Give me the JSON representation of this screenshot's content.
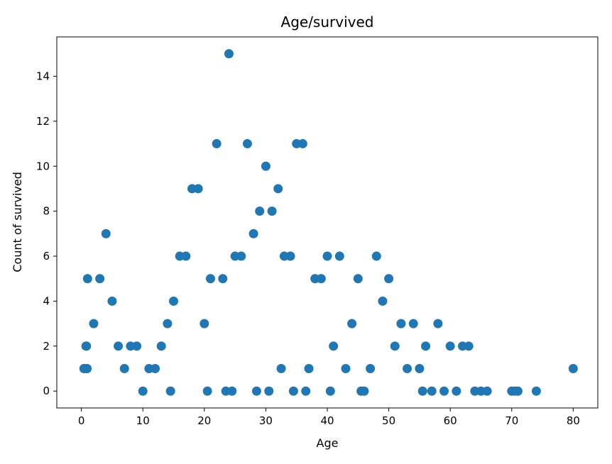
{
  "chart_data": {
    "type": "scatter",
    "title": "Age/survived",
    "xlabel": "Age",
    "ylabel": "Count of survived",
    "xlim": [
      -4.0,
      84.0
    ],
    "ylim": [
      -0.75,
      15.75
    ],
    "xticks": [
      0,
      10,
      20,
      30,
      40,
      50,
      60,
      70,
      80
    ],
    "yticks": [
      0,
      2,
      4,
      6,
      8,
      10,
      12,
      14
    ],
    "grid": false,
    "marker_color": "#1f77b4",
    "points": [
      {
        "x": 0.42,
        "y": 1
      },
      {
        "x": 0.67,
        "y": 1
      },
      {
        "x": 0.75,
        "y": 2
      },
      {
        "x": 0.83,
        "y": 2
      },
      {
        "x": 0.92,
        "y": 1
      },
      {
        "x": 1,
        "y": 5
      },
      {
        "x": 2,
        "y": 3
      },
      {
        "x": 3,
        "y": 5
      },
      {
        "x": 4,
        "y": 7
      },
      {
        "x": 5,
        "y": 4
      },
      {
        "x": 6,
        "y": 2
      },
      {
        "x": 7,
        "y": 1
      },
      {
        "x": 8,
        "y": 2
      },
      {
        "x": 9,
        "y": 2
      },
      {
        "x": 10,
        "y": 0
      },
      {
        "x": 11,
        "y": 1
      },
      {
        "x": 12,
        "y": 1
      },
      {
        "x": 13,
        "y": 2
      },
      {
        "x": 14,
        "y": 3
      },
      {
        "x": 14.5,
        "y": 0
      },
      {
        "x": 15,
        "y": 4
      },
      {
        "x": 16,
        "y": 6
      },
      {
        "x": 17,
        "y": 6
      },
      {
        "x": 18,
        "y": 9
      },
      {
        "x": 19,
        "y": 9
      },
      {
        "x": 20,
        "y": 3
      },
      {
        "x": 20.5,
        "y": 0
      },
      {
        "x": 21,
        "y": 5
      },
      {
        "x": 22,
        "y": 11
      },
      {
        "x": 23,
        "y": 5
      },
      {
        "x": 23.5,
        "y": 0
      },
      {
        "x": 24,
        "y": 15
      },
      {
        "x": 24.5,
        "y": 0
      },
      {
        "x": 25,
        "y": 6
      },
      {
        "x": 26,
        "y": 6
      },
      {
        "x": 27,
        "y": 11
      },
      {
        "x": 28,
        "y": 7
      },
      {
        "x": 28.5,
        "y": 0
      },
      {
        "x": 29,
        "y": 8
      },
      {
        "x": 30,
        "y": 10
      },
      {
        "x": 30.5,
        "y": 0
      },
      {
        "x": 31,
        "y": 8
      },
      {
        "x": 32,
        "y": 9
      },
      {
        "x": 32.5,
        "y": 1
      },
      {
        "x": 33,
        "y": 6
      },
      {
        "x": 34,
        "y": 6
      },
      {
        "x": 34.5,
        "y": 0
      },
      {
        "x": 35,
        "y": 11
      },
      {
        "x": 36,
        "y": 11
      },
      {
        "x": 36.5,
        "y": 0
      },
      {
        "x": 37,
        "y": 1
      },
      {
        "x": 38,
        "y": 5
      },
      {
        "x": 39,
        "y": 5
      },
      {
        "x": 40,
        "y": 6
      },
      {
        "x": 40.5,
        "y": 0
      },
      {
        "x": 41,
        "y": 2
      },
      {
        "x": 42,
        "y": 6
      },
      {
        "x": 43,
        "y": 1
      },
      {
        "x": 44,
        "y": 3
      },
      {
        "x": 45,
        "y": 5
      },
      {
        "x": 45.5,
        "y": 0
      },
      {
        "x": 46,
        "y": 0
      },
      {
        "x": 47,
        "y": 1
      },
      {
        "x": 48,
        "y": 6
      },
      {
        "x": 49,
        "y": 4
      },
      {
        "x": 50,
        "y": 5
      },
      {
        "x": 51,
        "y": 2
      },
      {
        "x": 52,
        "y": 3
      },
      {
        "x": 53,
        "y": 1
      },
      {
        "x": 54,
        "y": 3
      },
      {
        "x": 55,
        "y": 1
      },
      {
        "x": 55.5,
        "y": 0
      },
      {
        "x": 56,
        "y": 2
      },
      {
        "x": 57,
        "y": 0
      },
      {
        "x": 58,
        "y": 3
      },
      {
        "x": 59,
        "y": 0
      },
      {
        "x": 60,
        "y": 2
      },
      {
        "x": 61,
        "y": 0
      },
      {
        "x": 62,
        "y": 2
      },
      {
        "x": 63,
        "y": 2
      },
      {
        "x": 64,
        "y": 0
      },
      {
        "x": 65,
        "y": 0
      },
      {
        "x": 66,
        "y": 0
      },
      {
        "x": 70,
        "y": 0
      },
      {
        "x": 70.5,
        "y": 0
      },
      {
        "x": 71,
        "y": 0
      },
      {
        "x": 74,
        "y": 0
      },
      {
        "x": 80,
        "y": 1
      }
    ]
  }
}
